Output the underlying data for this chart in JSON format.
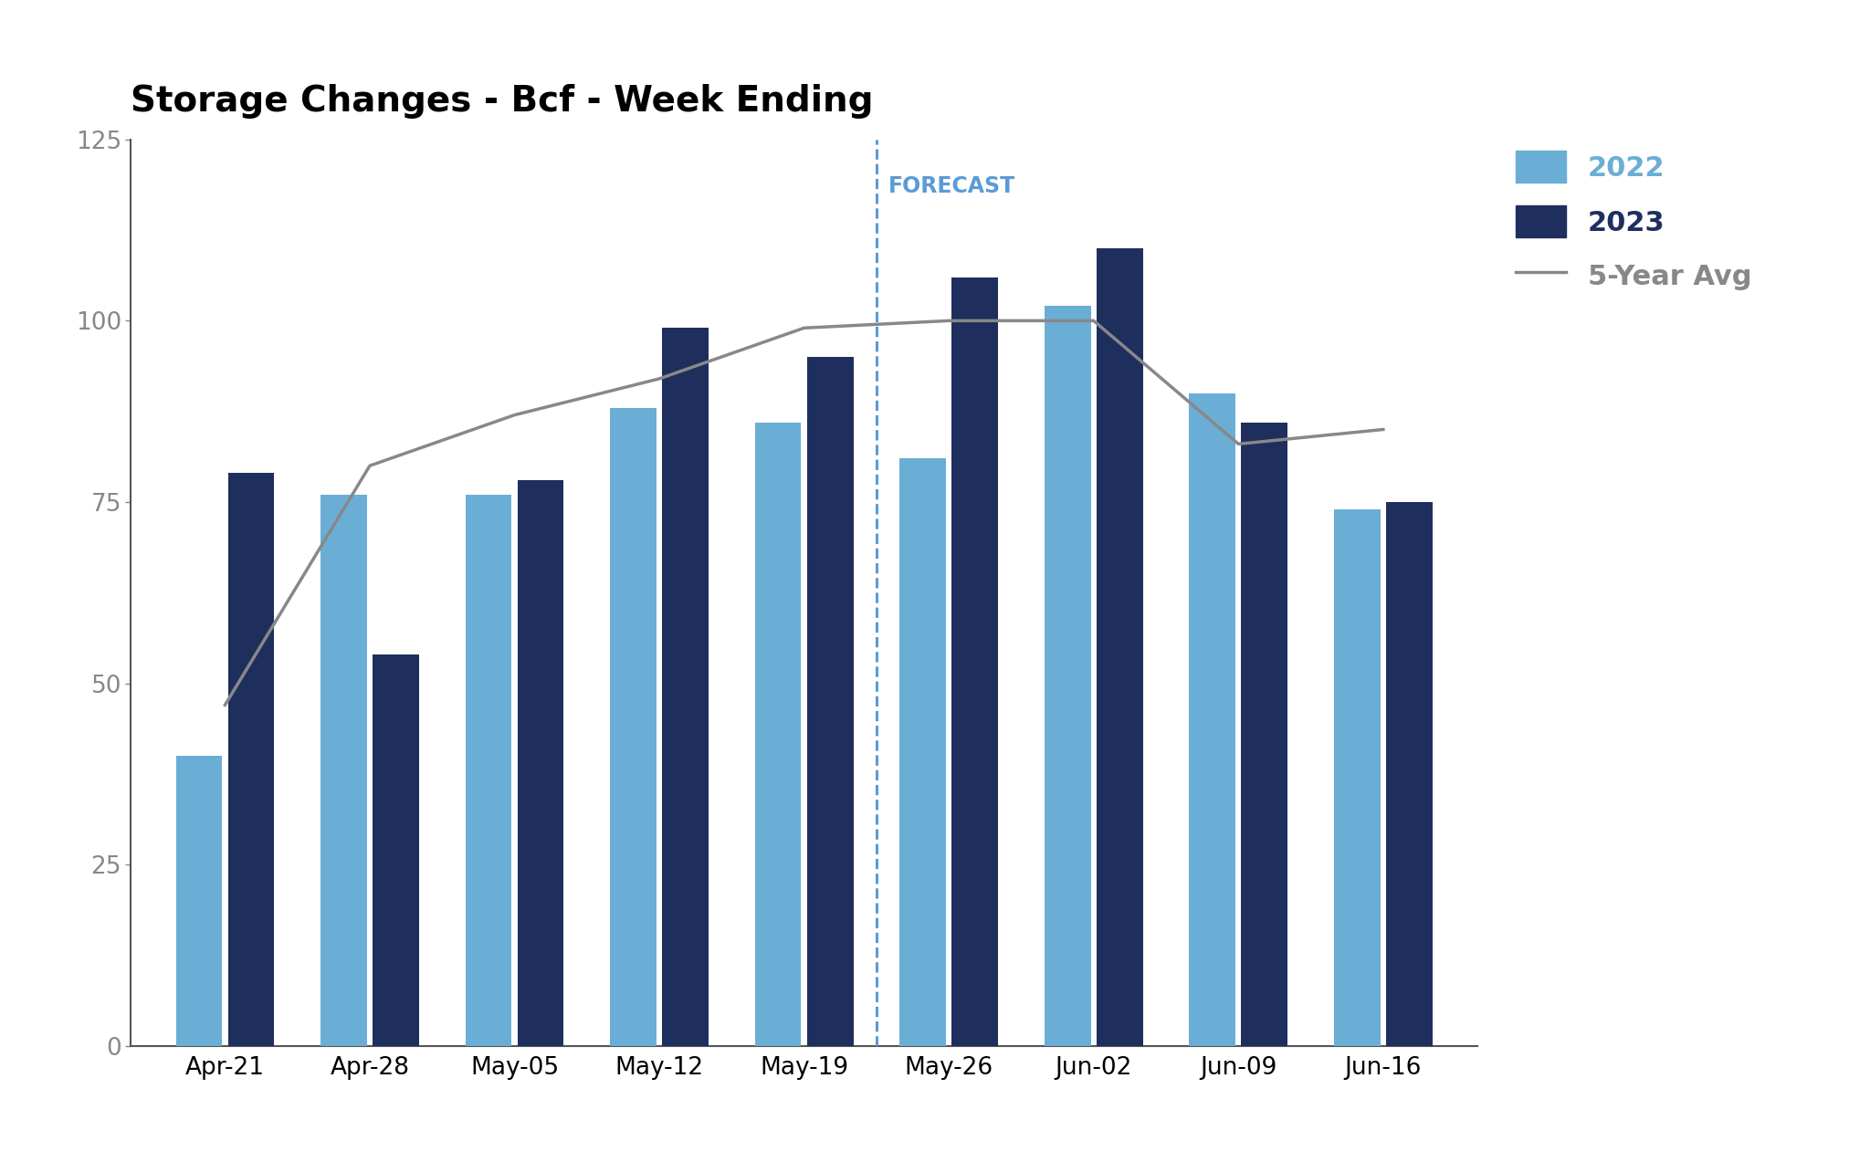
{
  "title": "Storage Changes - Bcf - Week Ending",
  "categories": [
    "Apr-21",
    "Apr-28",
    "May-05",
    "May-12",
    "May-19",
    "May-26",
    "Jun-02",
    "Jun-09",
    "Jun-16"
  ],
  "values_2022": [
    40,
    76,
    76,
    88,
    86,
    81,
    102,
    90,
    74
  ],
  "values_2023": [
    79,
    54,
    78,
    99,
    95,
    106,
    110,
    86,
    75
  ],
  "values_5yr_avg": [
    47,
    80,
    87,
    92,
    99,
    100,
    100,
    83,
    85
  ],
  "color_2022": "#6aaed6",
  "color_2023": "#1e2f5e",
  "color_5yr_avg": "#888888",
  "forecast_after_index": 4,
  "forecast_label": "FORECAST",
  "forecast_label_color": "#5b9bd5",
  "ylim": [
    0,
    125
  ],
  "yticks": [
    0,
    25,
    50,
    75,
    100,
    125
  ],
  "background_color": "#ffffff",
  "title_fontsize": 28,
  "tick_fontsize": 19,
  "legend_fontsize": 22,
  "forecast_fontsize": 17,
  "bar_width": 0.32,
  "bar_gap": 0.04
}
